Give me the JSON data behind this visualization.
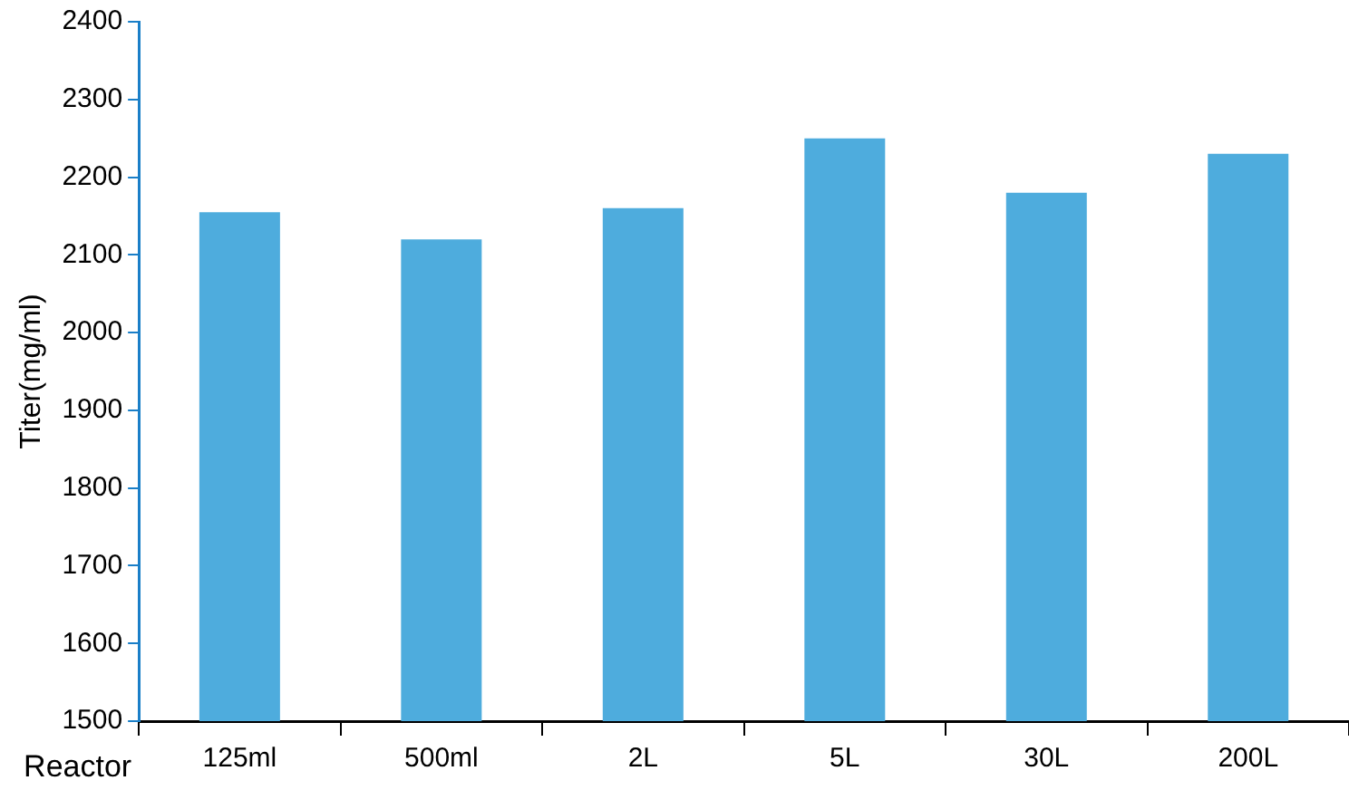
{
  "chart_data": {
    "type": "bar",
    "xlabel": "Reactor",
    "ylabel": "Titer(mg/ml)",
    "categories": [
      "125ml",
      "500ml",
      "2L",
      "5L",
      "30L",
      "200L"
    ],
    "values": [
      2155,
      2120,
      2160,
      2250,
      2180,
      2230
    ],
    "color": "#4eacdd",
    "ylim": [
      1500,
      2400
    ],
    "yticks": [
      1500,
      1600,
      1700,
      1800,
      1900,
      2000,
      2100,
      2200,
      2300,
      2400
    ],
    "grid": false,
    "legend": false
  }
}
